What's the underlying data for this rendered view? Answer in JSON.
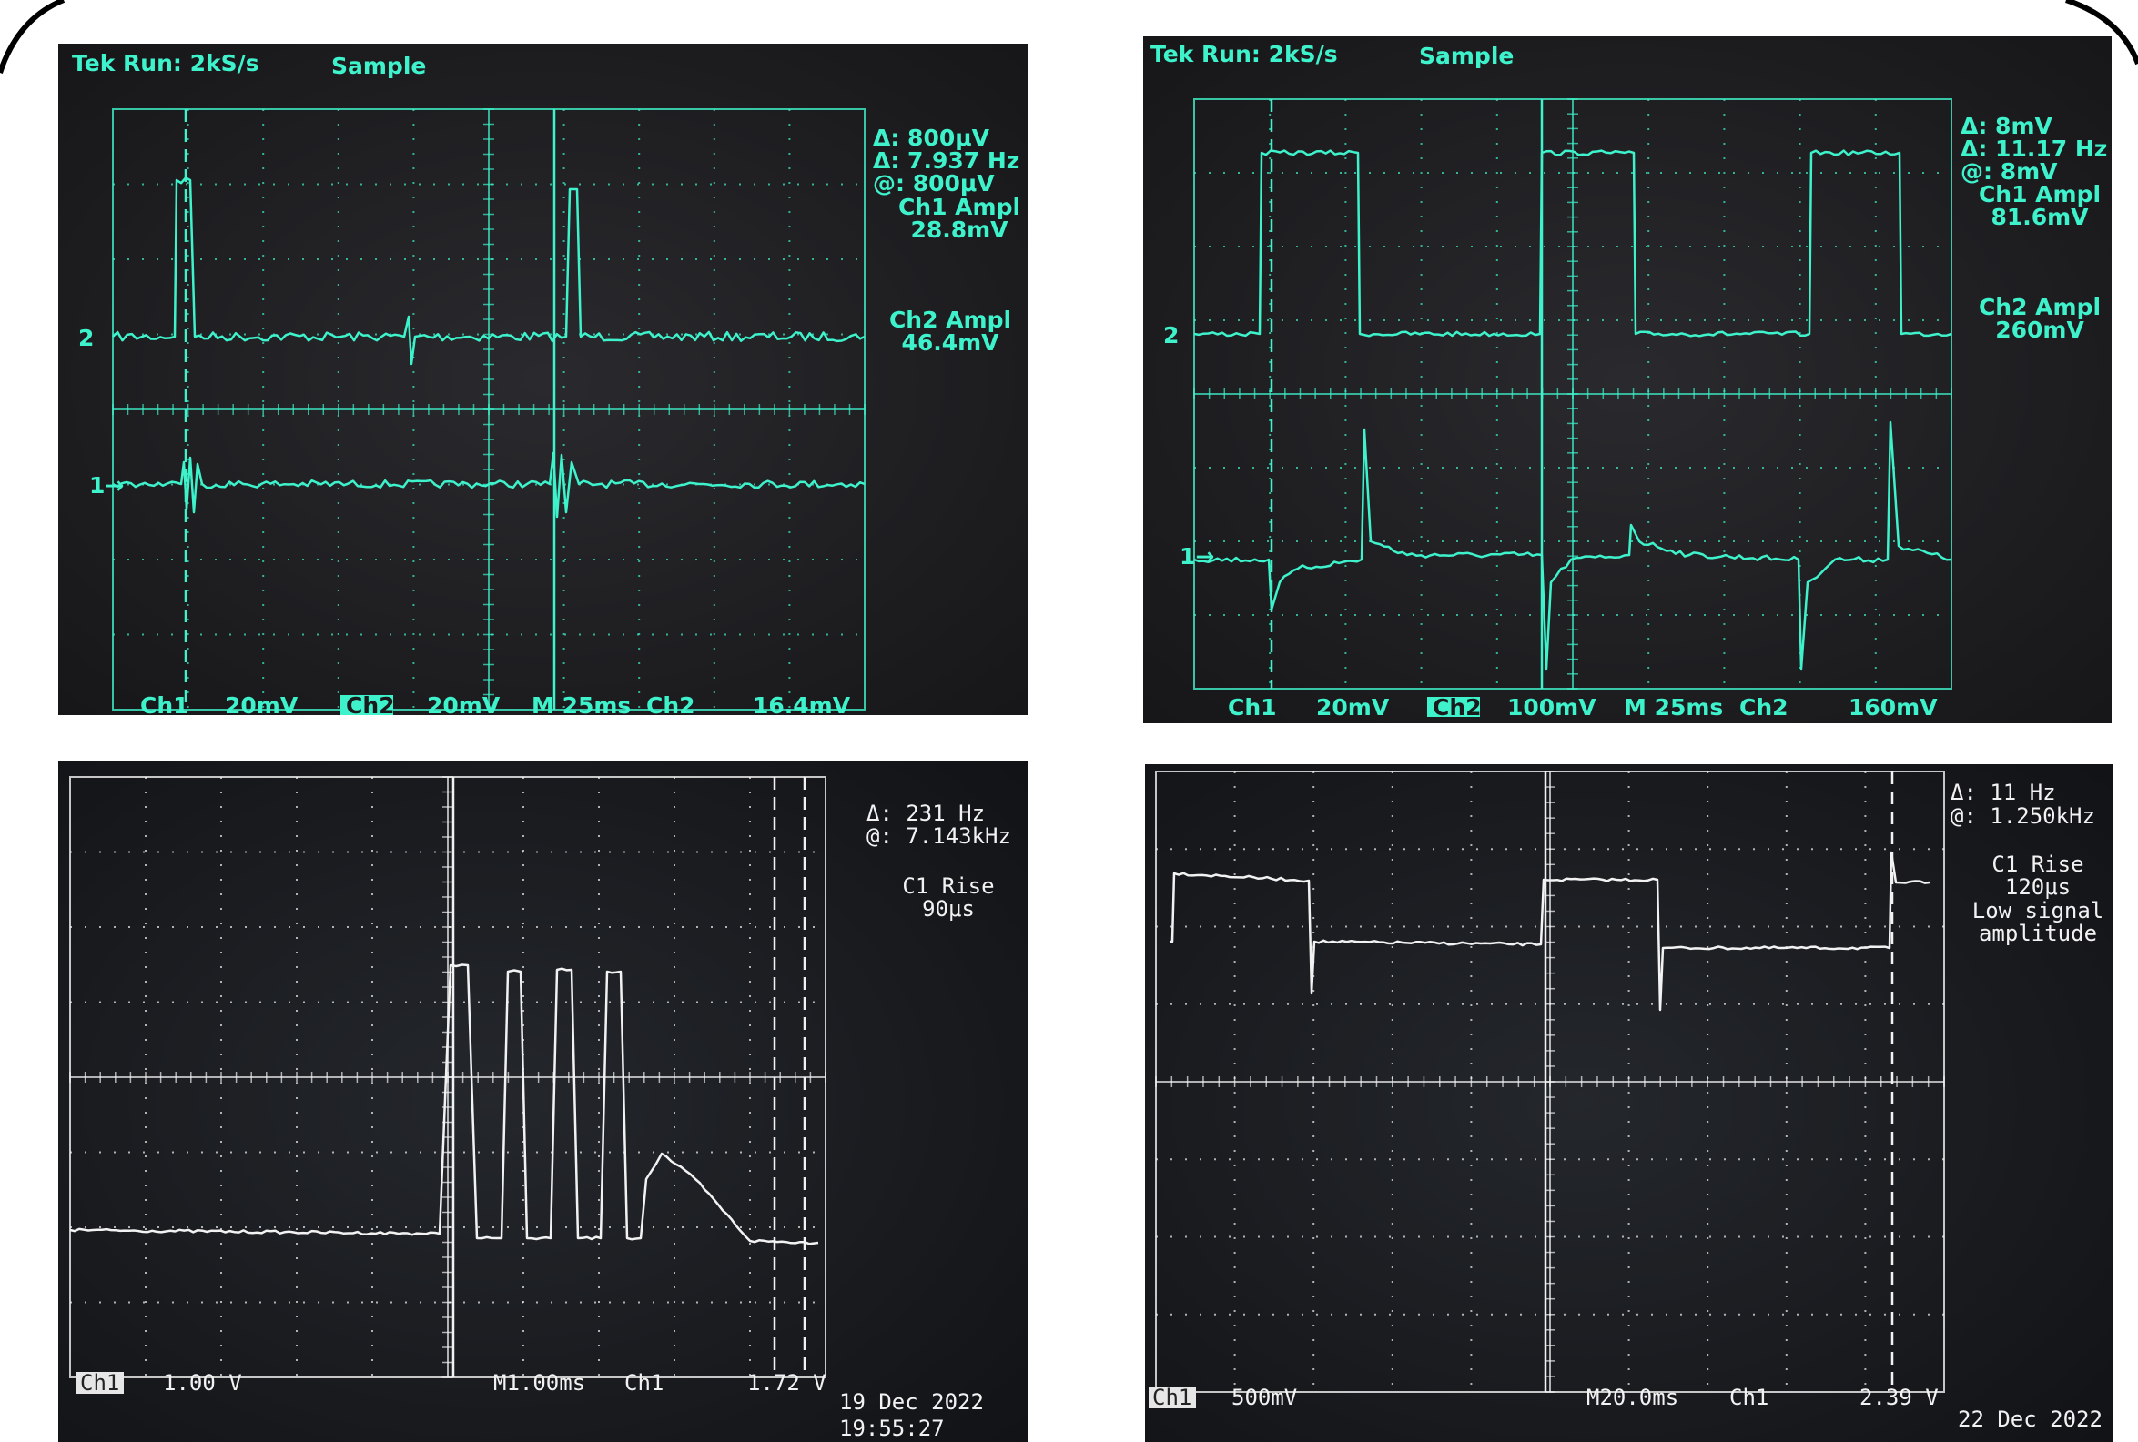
{
  "panels": [
    {
      "header": {
        "status": "Tek Run: 2kS/s",
        "mode": "Sample"
      },
      "markers": [
        "2",
        "1→"
      ],
      "readouts": [
        "Δ: 800μV",
        "Δ: 7.937 Hz",
        "@: 800μV",
        "Ch1 Ampl",
        "28.8mV",
        "Ch2 Ampl",
        "46.4mV"
      ],
      "footer": [
        "Ch1",
        "20mV",
        "Ch2",
        "20mV",
        "M 25ms",
        "Ch2",
        "16.4mV"
      ]
    },
    {
      "header": {
        "status": "Tek Run: 2kS/s",
        "mode": "Sample"
      },
      "markers": [
        "2",
        "1→"
      ],
      "readouts": [
        "Δ: 8mV",
        "Δ: 11.17 Hz",
        "@: 8mV",
        "Ch1 Ampl",
        "81.6mV",
        "Ch2 Ampl",
        "260mV"
      ],
      "footer": [
        "Ch1",
        "20mV",
        "Ch2",
        "100mV",
        "M 25ms",
        "Ch2",
        "160mV"
      ]
    },
    {
      "readouts": [
        "Δ: 231 Hz",
        "@: 7.143kHz",
        "C1 Rise",
        "90μs"
      ],
      "footer": [
        "Ch1",
        "1.00 V",
        "M1.00ms",
        "Ch1",
        "1.72 V",
        "19 Dec 2022",
        "19:55:27"
      ]
    },
    {
      "readouts": [
        "Δ: 11 Hz",
        "@: 1.250kHz",
        "C1 Rise",
        "120μs",
        "Low signal",
        "amplitude"
      ],
      "footer": [
        "Ch1",
        "500mV",
        "M20.0ms",
        "Ch1",
        "2.39 V",
        "22 Dec 2022"
      ]
    }
  ]
}
